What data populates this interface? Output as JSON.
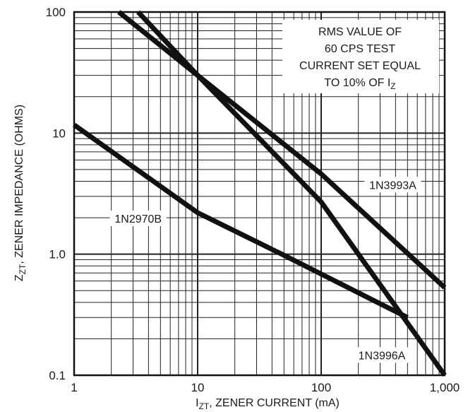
{
  "chart_data": {
    "type": "line",
    "title": "",
    "xlabel": {
      "main": "I",
      "sub": "ZT",
      "rest": ", ZENER CURRENT (mA)"
    },
    "ylabel": {
      "main": "Z",
      "sub": "ZT",
      "rest": ", ZENER IMPEDANCE (OHMS)"
    },
    "x_scale": "log",
    "y_scale": "log",
    "xlim": [
      1,
      1000
    ],
    "ylim": [
      0.1,
      100
    ],
    "grid": true,
    "x_ticks": [
      {
        "value": 1,
        "label": "1"
      },
      {
        "value": 10,
        "label": "10"
      },
      {
        "value": 100,
        "label": "100"
      },
      {
        "value": 1000,
        "label": "1,000"
      }
    ],
    "y_ticks": [
      {
        "value": 0.1,
        "label": "0.1"
      },
      {
        "value": 1,
        "label": "1.0"
      },
      {
        "value": 10,
        "label": "10"
      },
      {
        "value": 100,
        "label": "100"
      }
    ],
    "annotation": {
      "lines": [
        "RMS VALUE OF",
        "60 CPS TEST",
        "CURRENT SET EQUAL",
        "TO 10% OF I"
      ],
      "last_line_sub": "Z"
    },
    "series": [
      {
        "name": "1N2970B",
        "x": [
          1,
          10,
          50,
          500
        ],
        "y": [
          11.7,
          2.2,
          0.98,
          0.3
        ]
      },
      {
        "name": "1N3993A",
        "x": [
          2.3,
          10,
          100,
          1000
        ],
        "y": [
          100,
          30,
          4.6,
          0.53
        ]
      },
      {
        "name": "1N3996A",
        "x": [
          3.3,
          10,
          100,
          1000
        ],
        "y": [
          100,
          30,
          2.7,
          0.1
        ]
      }
    ]
  }
}
